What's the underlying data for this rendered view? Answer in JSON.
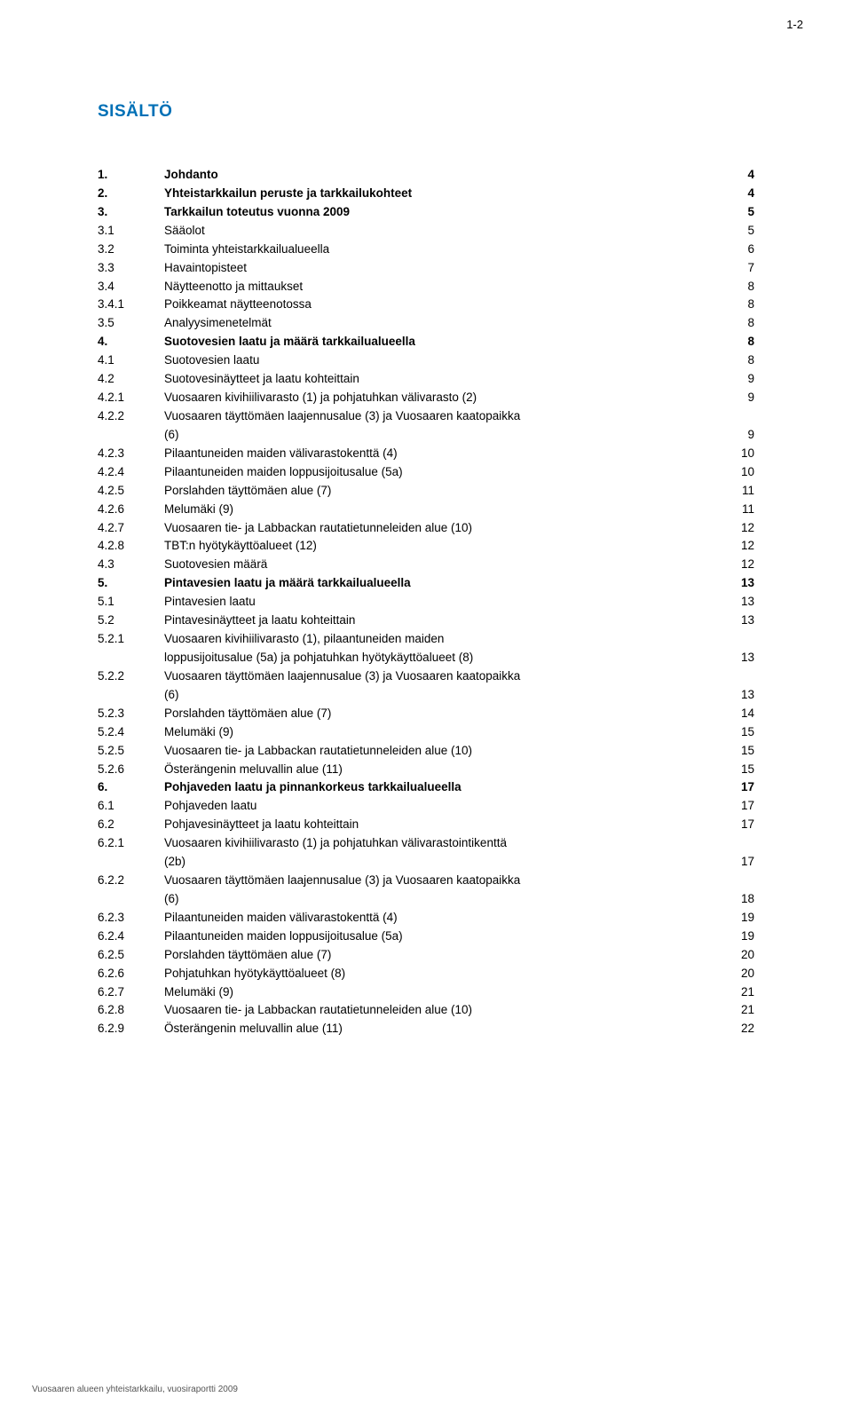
{
  "pageNumTop": "1-2",
  "title": "SISÄLTÖ",
  "footer": "Vuosaaren alueen yhteistarkkailu, vuosiraportti 2009",
  "toc": [
    {
      "num": "1.",
      "label": "Johdanto",
      "page": "4",
      "bold": true
    },
    {
      "num": "2.",
      "label": "Yhteistarkkailun peruste ja tarkkailukohteet",
      "page": "4",
      "bold": true
    },
    {
      "num": "3.",
      "label": "Tarkkailun toteutus vuonna 2009",
      "page": "5",
      "bold": true
    },
    {
      "num": "3.1",
      "label": "Sääolot",
      "page": "5"
    },
    {
      "num": "3.2",
      "label": "Toiminta yhteistarkkailualueella",
      "page": "6"
    },
    {
      "num": "3.3",
      "label": "Havaintopisteet",
      "page": "7"
    },
    {
      "num": "3.4",
      "label": "Näytteenotto ja mittaukset",
      "page": "8"
    },
    {
      "num": "3.4.1",
      "label": "Poikkeamat näytteenotossa",
      "page": "8"
    },
    {
      "num": "3.5",
      "label": "Analyysimenetelmät",
      "page": "8"
    },
    {
      "num": "4.",
      "label": "Suotovesien laatu ja määrä tarkkailualueella",
      "page": "8",
      "bold": true
    },
    {
      "num": "4.1",
      "label": "Suotovesien laatu",
      "page": "8"
    },
    {
      "num": "4.2",
      "label": "Suotovesinäytteet ja laatu kohteittain",
      "page": "9"
    },
    {
      "num": "4.2.1",
      "label": "Vuosaaren kivihiilivarasto (1) ja pohjatuhkan välivarasto (2)",
      "page": "9"
    },
    {
      "num": "4.2.2",
      "label": "Vuosaaren täyttömäen laajennusalue (3) ja Vuosaaren kaatopaikka",
      "page": ""
    },
    {
      "num": "",
      "label": "(6)",
      "page": "9",
      "cont": true
    },
    {
      "num": "4.2.3",
      "label": "Pilaantuneiden maiden välivarastokenttä (4)",
      "page": "10"
    },
    {
      "num": "4.2.4",
      "label": "Pilaantuneiden maiden loppusijoitusalue (5a)",
      "page": "10"
    },
    {
      "num": "4.2.5",
      "label": "Porslahden täyttömäen alue (7)",
      "page": "11"
    },
    {
      "num": "4.2.6",
      "label": "Melumäki (9)",
      "page": "11"
    },
    {
      "num": "4.2.7",
      "label": "Vuosaaren tie- ja Labbackan rautatietunneleiden alue (10)",
      "page": "12"
    },
    {
      "num": "4.2.8",
      "label": "TBT:n hyötykäyttöalueet (12)",
      "page": "12"
    },
    {
      "num": "4.3",
      "label": "Suotovesien määrä",
      "page": "12"
    },
    {
      "num": "5.",
      "label": "Pintavesien laatu ja määrä tarkkailualueella",
      "page": "13",
      "bold": true
    },
    {
      "num": "5.1",
      "label": "Pintavesien laatu",
      "page": "13"
    },
    {
      "num": "5.2",
      "label": "Pintavesinäytteet ja laatu kohteittain",
      "page": "13"
    },
    {
      "num": "5.2.1",
      "label": "Vuosaaren kivihiilivarasto (1), pilaantuneiden maiden",
      "page": ""
    },
    {
      "num": "",
      "label": "loppusijoitusalue (5a) ja pohjatuhkan hyötykäyttöalueet (8)",
      "page": "13",
      "cont": true
    },
    {
      "num": "5.2.2",
      "label": "Vuosaaren täyttömäen laajennusalue (3) ja Vuosaaren kaatopaikka",
      "page": ""
    },
    {
      "num": "",
      "label": "(6)",
      "page": "13",
      "cont": true
    },
    {
      "num": "5.2.3",
      "label": "Porslahden täyttömäen alue (7)",
      "page": "14"
    },
    {
      "num": "5.2.4",
      "label": "Melumäki (9)",
      "page": "15"
    },
    {
      "num": "5.2.5",
      "label": "Vuosaaren tie- ja Labbackan rautatietunneleiden alue (10)",
      "page": "15"
    },
    {
      "num": "5.2.6",
      "label": "Österängenin meluvallin alue (11)",
      "page": "15"
    },
    {
      "num": "6.",
      "label": "Pohjaveden laatu ja pinnankorkeus tarkkailualueella",
      "page": "17",
      "bold": true
    },
    {
      "num": "6.1",
      "label": "Pohjaveden laatu",
      "page": "17"
    },
    {
      "num": "6.2",
      "label": "Pohjavesinäytteet ja laatu kohteittain",
      "page": "17"
    },
    {
      "num": "6.2.1",
      "label": "Vuosaaren kivihiilivarasto (1) ja pohjatuhkan välivarastointikenttä",
      "page": ""
    },
    {
      "num": "",
      "label": "(2b)",
      "page": "17",
      "cont": true
    },
    {
      "num": "6.2.2",
      "label": "Vuosaaren täyttömäen laajennusalue (3) ja Vuosaaren kaatopaikka",
      "page": ""
    },
    {
      "num": "",
      "label": "(6)",
      "page": "18",
      "cont": true
    },
    {
      "num": "6.2.3",
      "label": "Pilaantuneiden maiden välivarastokenttä (4)",
      "page": "19"
    },
    {
      "num": "6.2.4",
      "label": "Pilaantuneiden maiden loppusijoitusalue (5a)",
      "page": "19"
    },
    {
      "num": "6.2.5",
      "label": "Porslahden täyttömäen alue (7)",
      "page": "20"
    },
    {
      "num": "6.2.6",
      "label": "Pohjatuhkan hyötykäyttöalueet (8)",
      "page": "20"
    },
    {
      "num": "6.2.7",
      "label": "Melumäki (9)",
      "page": "21"
    },
    {
      "num": "6.2.8",
      "label": "Vuosaaren tie- ja Labbackan rautatietunneleiden alue (10)",
      "page": "21"
    },
    {
      "num": "6.2.9",
      "label": "Österängenin meluvallin alue (11)",
      "page": "22"
    }
  ]
}
